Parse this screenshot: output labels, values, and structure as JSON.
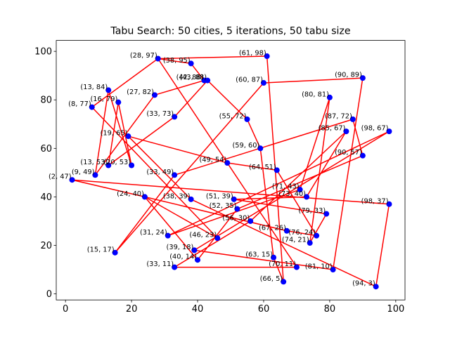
{
  "chart_data": {
    "type": "line",
    "title": "Tabu Search: 50 cities, 5 iterations, 50 tabu size",
    "xlabel": "",
    "ylabel": "",
    "xlim": [
      -2.8,
      102.8
    ],
    "ylim": [
      -2.5,
      104.5
    ],
    "xticks": [
      0,
      20,
      40,
      60,
      80,
      100
    ],
    "yticks": [
      0,
      20,
      40,
      60,
      80,
      100
    ],
    "grid": false,
    "route_color": "#ff0000",
    "point_color": "#0000ff",
    "points": [
      [
        28,
        97
      ],
      [
        38,
        95
      ],
      [
        61,
        98
      ],
      [
        90,
        89
      ],
      [
        43,
        88
      ],
      [
        42,
        88
      ],
      [
        60,
        87
      ],
      [
        13,
        84
      ],
      [
        27,
        82
      ],
      [
        80,
        81
      ],
      [
        16,
        79
      ],
      [
        8,
        77
      ],
      [
        33,
        73
      ],
      [
        55,
        72
      ],
      [
        87,
        72
      ],
      [
        85,
        67
      ],
      [
        98,
        67
      ],
      [
        19,
        65
      ],
      [
        59,
        60
      ],
      [
        90,
        57
      ],
      [
        49,
        54
      ],
      [
        13,
        53
      ],
      [
        20,
        53
      ],
      [
        64,
        51
      ],
      [
        33,
        49
      ],
      [
        9,
        49
      ],
      [
        2,
        47
      ],
      [
        71,
        43
      ],
      [
        73,
        40
      ],
      [
        24,
        40
      ],
      [
        38,
        39
      ],
      [
        51,
        39
      ],
      [
        98,
        37
      ],
      [
        52,
        35
      ],
      [
        79,
        33
      ],
      [
        56,
        30
      ],
      [
        67,
        26
      ],
      [
        76,
        24
      ],
      [
        31,
        24
      ],
      [
        46,
        23
      ],
      [
        74,
        21
      ],
      [
        39,
        18
      ],
      [
        15,
        17
      ],
      [
        63,
        15
      ],
      [
        40,
        14
      ],
      [
        33,
        11
      ],
      [
        70,
        11
      ],
      [
        81,
        10
      ],
      [
        66,
        5
      ],
      [
        94,
        3
      ]
    ],
    "labels": [
      "(28, 97)",
      "(38, 95)",
      "(61, 98)",
      "(90, 89)",
      "(43, 88)",
      "(42, 88)",
      "(60, 87)",
      "(13, 84)",
      "(27, 82)",
      "(80, 81)",
      "(16, 79)",
      "(8, 77)",
      "(33, 73)",
      "(55, 72)",
      "(87, 72)",
      "(85, 67)",
      "(98, 67)",
      "(19, 65)",
      "(59, 60)",
      "(90, 57)",
      "(49, 54)",
      "(13, 53)",
      "(20, 53)",
      "(64, 51)",
      "(33, 49)",
      "(9, 49)",
      "(2, 47)",
      "(71, 43)",
      "(73, 40)",
      "(24, 40)",
      "(38, 39)",
      "(51, 39)",
      "(98, 37)",
      "(52, 35)",
      "(79, 33)",
      "(56, 30)",
      "(67, 26)",
      "(76, 24)",
      "(31, 24)",
      "(46, 23)",
      "(74, 21)",
      "(39, 18)",
      "(15, 17)",
      "(63, 15)",
      "(40, 14)",
      "(33, 11)",
      "(70, 11)",
      "(81, 10)",
      "(66, 5)",
      "(94, 3)"
    ],
    "route": [
      [
        28,
        97
      ],
      [
        61,
        98
      ],
      [
        66,
        5
      ],
      [
        63,
        15
      ],
      [
        59,
        60
      ],
      [
        55,
        72
      ],
      [
        43,
        88
      ],
      [
        33,
        73
      ],
      [
        13,
        53
      ],
      [
        16,
        79
      ],
      [
        20,
        53
      ],
      [
        13,
        84
      ],
      [
        9,
        49
      ],
      [
        27,
        82
      ],
      [
        42,
        88
      ],
      [
        38,
        95
      ],
      [
        28,
        97
      ],
      [
        8,
        77
      ],
      [
        46,
        23
      ],
      [
        24,
        40
      ],
      [
        2,
        47
      ],
      [
        98,
        37
      ],
      [
        94,
        3
      ],
      [
        38,
        39
      ],
      [
        19,
        65
      ],
      [
        49,
        54
      ],
      [
        64,
        51
      ],
      [
        76,
        24
      ],
      [
        67,
        26
      ],
      [
        24,
        40
      ],
      [
        40,
        14
      ],
      [
        52,
        35
      ],
      [
        90,
        57
      ],
      [
        87,
        72
      ],
      [
        33,
        49
      ],
      [
        15,
        17
      ],
      [
        60,
        87
      ],
      [
        90,
        89
      ],
      [
        81,
        10
      ],
      [
        39,
        18
      ],
      [
        98,
        67
      ],
      [
        31,
        24
      ],
      [
        71,
        43
      ],
      [
        80,
        81
      ],
      [
        74,
        21
      ],
      [
        79,
        33
      ],
      [
        51,
        39
      ],
      [
        73,
        40
      ],
      [
        85,
        67
      ],
      [
        56,
        30
      ],
      [
        33,
        11
      ],
      [
        70,
        11
      ],
      [
        28,
        97
      ]
    ]
  }
}
